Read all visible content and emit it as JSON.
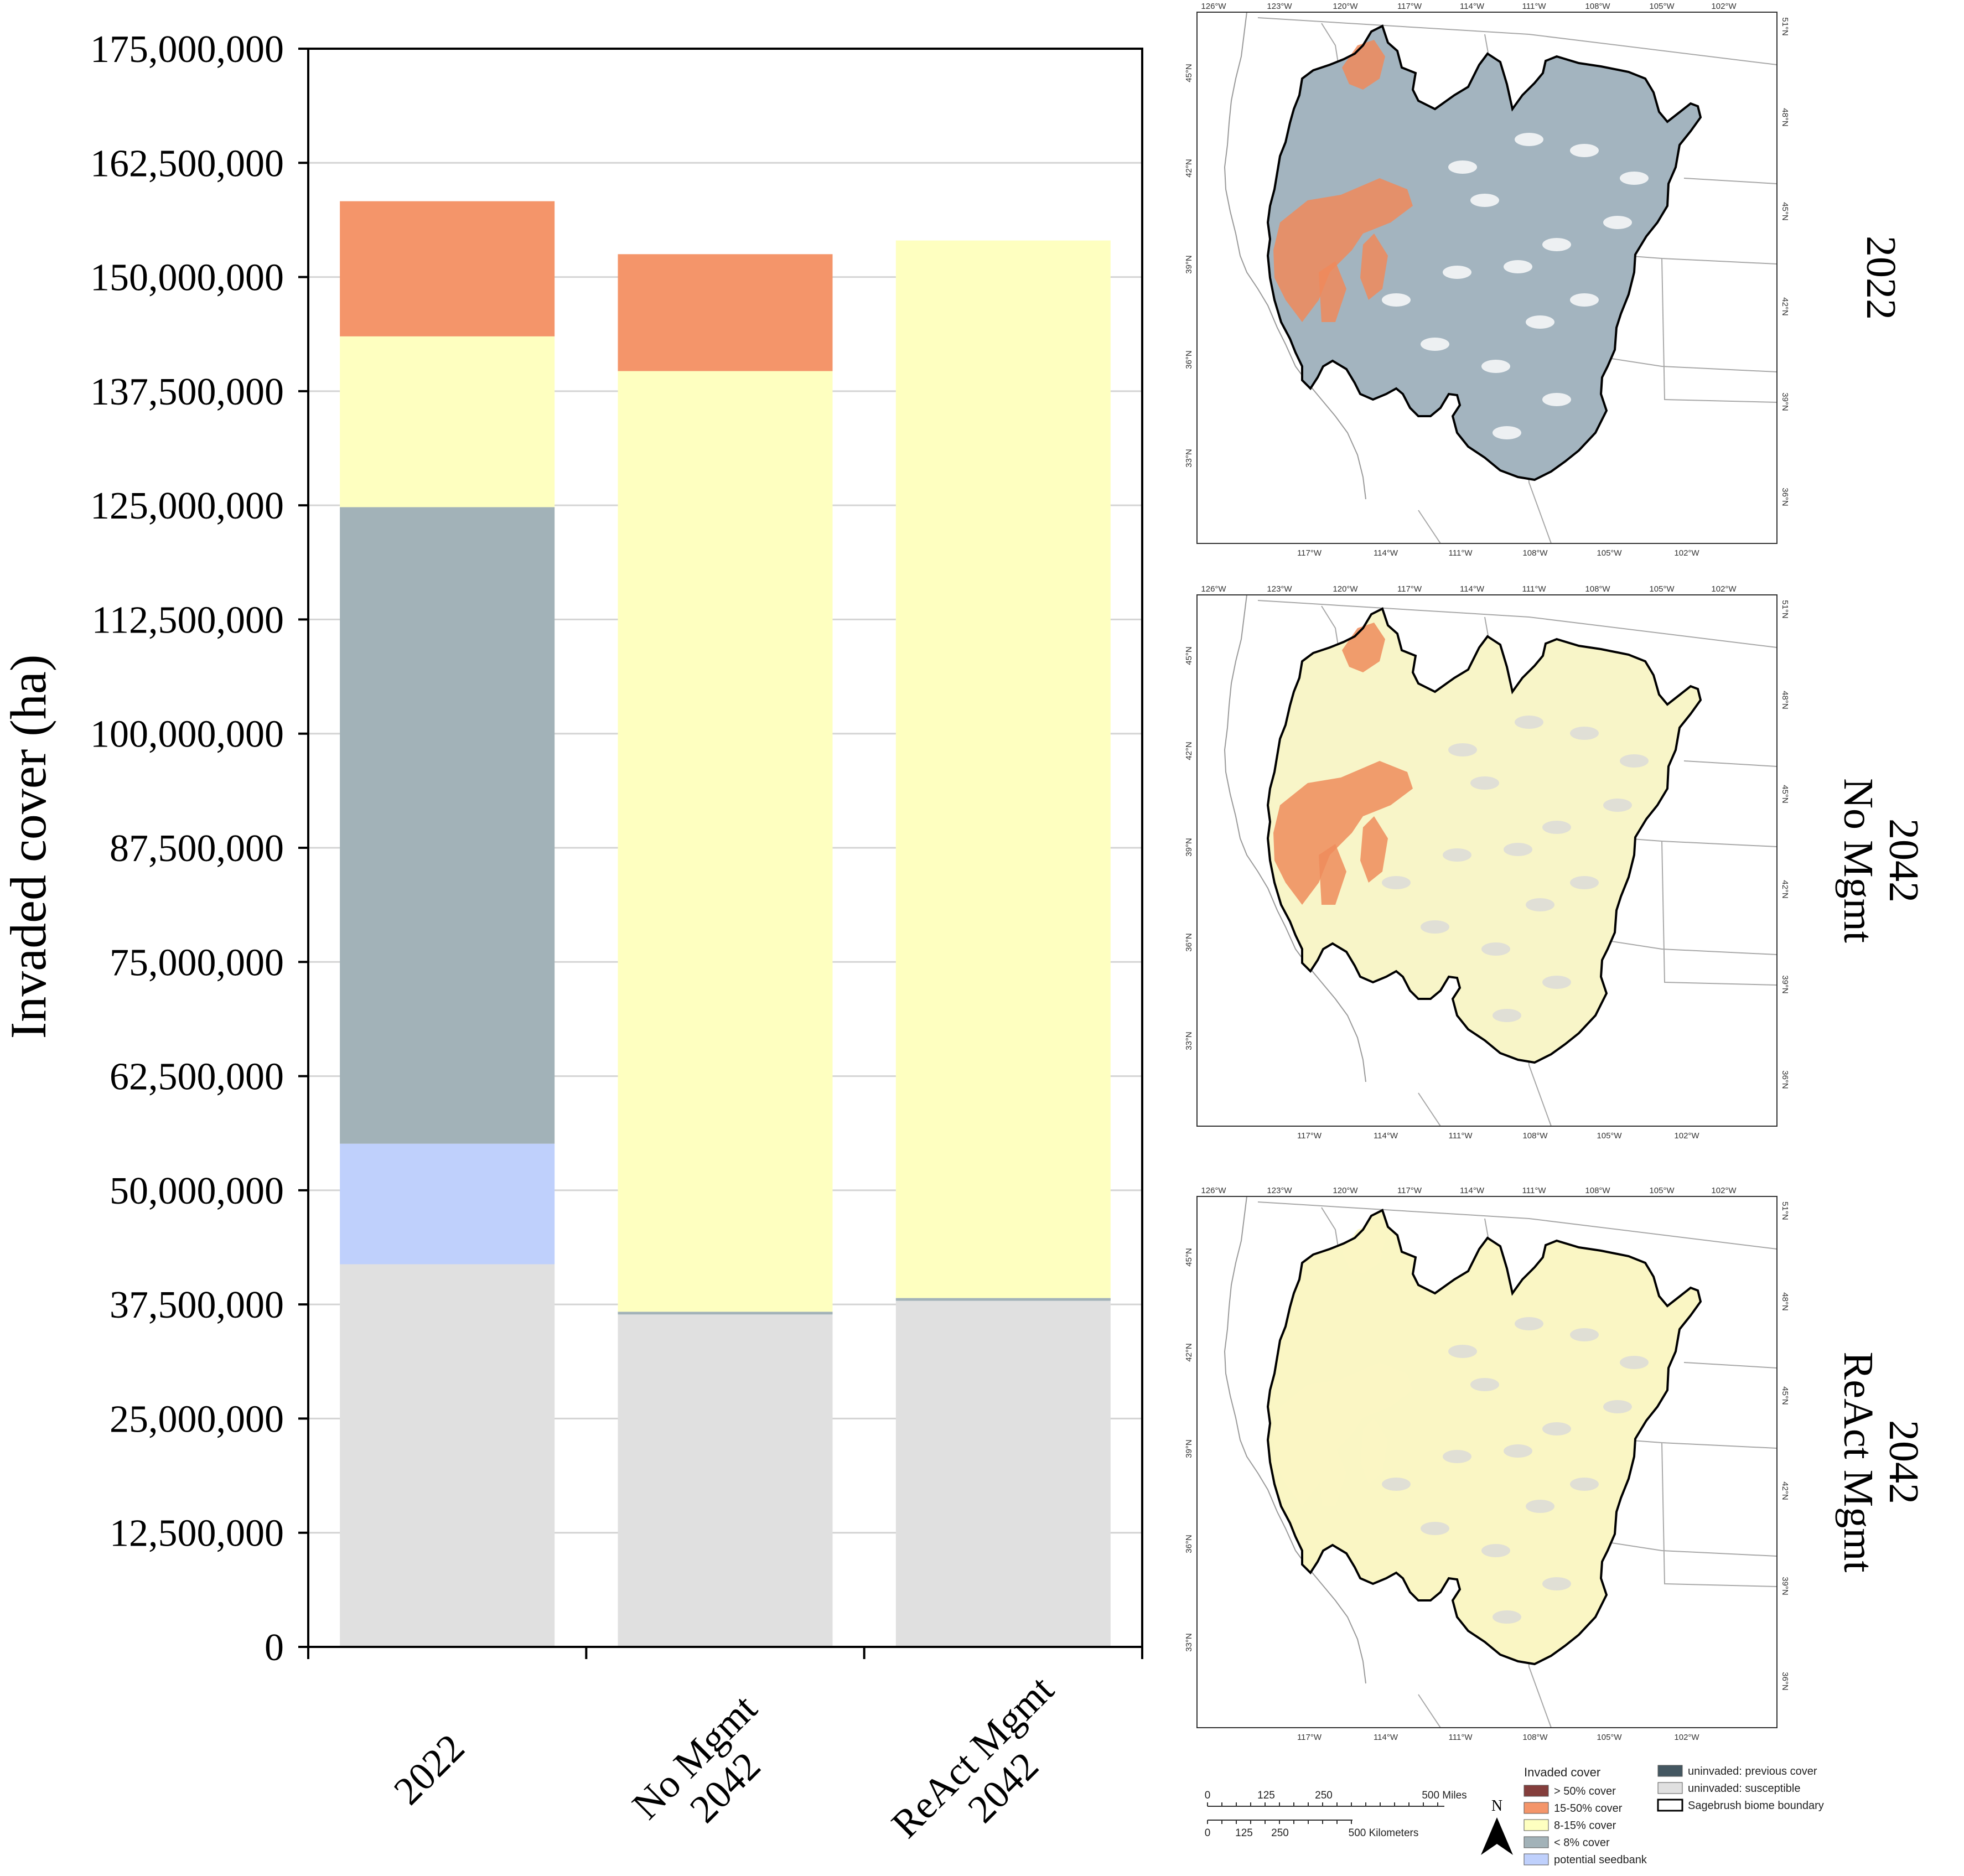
{
  "chart_data": {
    "type": "bar",
    "stacked": true,
    "ylabel": "Invaded cover (ha)",
    "xlabel": "",
    "ylim": [
      0,
      175000000
    ],
    "yticks": [
      0,
      12500000,
      25000000,
      37500000,
      50000000,
      62500000,
      75000000,
      87500000,
      100000000,
      112500000,
      125000000,
      137500000,
      150000000,
      162500000,
      175000000
    ],
    "ytick_labels": [
      "0",
      "12,500,000",
      "25,000,000",
      "37,500,000",
      "50,000,000",
      "62,500,000",
      "75,000,000",
      "87,500,000",
      "100,000,000",
      "112,500,000",
      "125,000,000",
      "137,500,000",
      "150,000,000",
      "162,500,000",
      "175,000,000"
    ],
    "grid": true,
    "categories": [
      {
        "line1": "2022",
        "line2": ""
      },
      {
        "line1": "No Mgmt",
        "line2": "2042"
      },
      {
        "line1": "ReAct Mgmt",
        "line2": "2042"
      }
    ],
    "series": [
      {
        "color": "#e0e0e0",
        "values": [
          41900000,
          36400000,
          37900000
        ]
      },
      {
        "color": "#bfd0fc",
        "values": [
          13200000,
          0,
          0
        ]
      },
      {
        "color": "#a2b2b8",
        "values": [
          69700000,
          300000,
          300000
        ]
      },
      {
        "color": "#feffc0",
        "values": [
          18700000,
          103000000,
          115800000
        ]
      },
      {
        "color": "#f4956a",
        "values": [
          14800000,
          12800000,
          0
        ]
      },
      {
        "color": "#843e3c",
        "values": [
          0,
          0,
          0
        ]
      }
    ]
  },
  "maps": [
    {
      "row_label": [
        "2022"
      ],
      "top_lon": [
        "126°W",
        "123°W",
        "120°W",
        "117°W",
        "114°W",
        "111°W",
        "108°W",
        "105°W",
        "102°W"
      ],
      "bottom_lon": [
        "117°W",
        "114°W",
        "111°W",
        "108°W",
        "105°W",
        "102°W"
      ],
      "left_lat": [
        "45°N",
        "42°N",
        "39°N",
        "36°N",
        "33°N"
      ],
      "right_lat": [
        "51°N",
        "48°N",
        "45°N",
        "42°N",
        "39°N",
        "36°N"
      ],
      "fill": "#a3b4bf",
      "patch": "#f08a5a",
      "speck": "#ffffff"
    },
    {
      "row_label": [
        "No Mgmt",
        "2042"
      ],
      "top_lon": [
        "126°W",
        "123°W",
        "120°W",
        "117°W",
        "114°W",
        "111°W",
        "108°W",
        "105°W",
        "102°W"
      ],
      "bottom_lon": [
        "117°W",
        "114°W",
        "111°W",
        "108°W",
        "105°W",
        "102°W"
      ],
      "left_lat": [
        "45°N",
        "42°N",
        "39°N",
        "36°N",
        "33°N"
      ],
      "right_lat": [
        "51°N",
        "48°N",
        "45°N",
        "42°N",
        "39°N",
        "36°N"
      ],
      "fill": "#f8f5c8",
      "patch": "#ee8c5c",
      "speck": "#d9d9d9"
    },
    {
      "row_label": [
        "ReAct Mgmt",
        "2042"
      ],
      "top_lon": [
        "126°W",
        "123°W",
        "120°W",
        "117°W",
        "114°W",
        "111°W",
        "108°W",
        "105°W",
        "102°W"
      ],
      "bottom_lon": [
        "117°W",
        "114°W",
        "111°W",
        "108°W",
        "105°W",
        "102°W"
      ],
      "left_lat": [
        "45°N",
        "42°N",
        "39°N",
        "36°N",
        "33°N"
      ],
      "right_lat": [
        "51°N",
        "48°N",
        "45°N",
        "42°N",
        "39°N",
        "36°N"
      ],
      "fill": "#faf6c4",
      "patch": "#faf6c4",
      "speck": "#d9d9d9"
    }
  ],
  "legend": {
    "title": "Invaded cover",
    "items": [
      {
        "label": "> 50% cover",
        "color": "#843e3c"
      },
      {
        "label": "15-50% cover",
        "color": "#f4956a"
      },
      {
        "label": "8-15% cover",
        "color": "#feffc0"
      },
      {
        "label": "< 8% cover",
        "color": "#a2b2b8"
      },
      {
        "label": "potential seedbank",
        "color": "#bfd0fc"
      }
    ],
    "items2": [
      {
        "label": "uninvaded: previous cover",
        "color": "#445761"
      },
      {
        "label": "uninvaded: susceptible",
        "color": "#e0e0e0"
      },
      {
        "label": "Sagebrush biome boundary",
        "color": "#ffffff"
      }
    ]
  },
  "scalebar": {
    "miles_labels": [
      "0",
      "125",
      "250",
      "500 Miles"
    ],
    "km_labels": [
      "0",
      "125",
      "250",
      "500 Kilometers"
    ],
    "north": "N"
  }
}
